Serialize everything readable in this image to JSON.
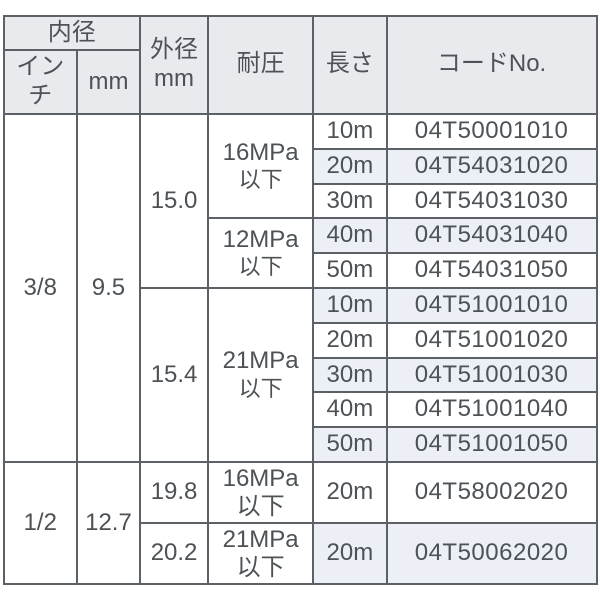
{
  "headers": {
    "inner_dia": "内径",
    "inch": "インチ",
    "mm": "mm",
    "outer_dia_line1": "外径",
    "outer_dia_line2": "mm",
    "pressure": "耐圧",
    "length": "長さ",
    "code": "コードNo."
  },
  "groups": [
    {
      "inch": "3/8",
      "mm": "9.5",
      "subgroups": [
        {
          "od": "15.0",
          "pressures": [
            {
              "label_l1": "16MPa",
              "label_l2": "以下",
              "rows": [
                {
                  "len": "10m",
                  "code": "04T50001010",
                  "shade": false
                },
                {
                  "len": "20m",
                  "code": "04T54031020",
                  "shade": true
                },
                {
                  "len": "30m",
                  "code": "04T54031030",
                  "shade": false
                }
              ]
            },
            {
              "label_l1": "12MPa",
              "label_l2": "以下",
              "rows": [
                {
                  "len": "40m",
                  "code": "04T54031040",
                  "shade": true
                },
                {
                  "len": "50m",
                  "code": "04T54031050",
                  "shade": false
                }
              ]
            }
          ]
        },
        {
          "od": "15.4",
          "pressures": [
            {
              "label_l1": "21MPa",
              "label_l2": "以下",
              "rows": [
                {
                  "len": "10m",
                  "code": "04T51001010",
                  "shade": true
                },
                {
                  "len": "20m",
                  "code": "04T51001020",
                  "shade": false
                },
                {
                  "len": "30m",
                  "code": "04T51001030",
                  "shade": true
                },
                {
                  "len": "40m",
                  "code": "04T51001040",
                  "shade": false
                },
                {
                  "len": "50m",
                  "code": "04T51001050",
                  "shade": true
                }
              ]
            }
          ]
        }
      ]
    },
    {
      "inch": "1/2",
      "mm": "12.7",
      "subgroups": [
        {
          "od": "19.8",
          "pressures": [
            {
              "label_inline": "16MPa以下",
              "rows": [
                {
                  "len": "20m",
                  "code": "04T58002020",
                  "shade": false
                }
              ]
            }
          ]
        },
        {
          "od": "20.2",
          "pressures": [
            {
              "label_inline": "21MPa以下",
              "rows": [
                {
                  "len": "20m",
                  "code": "04T50062020",
                  "shade": true
                }
              ]
            }
          ]
        }
      ]
    }
  ]
}
